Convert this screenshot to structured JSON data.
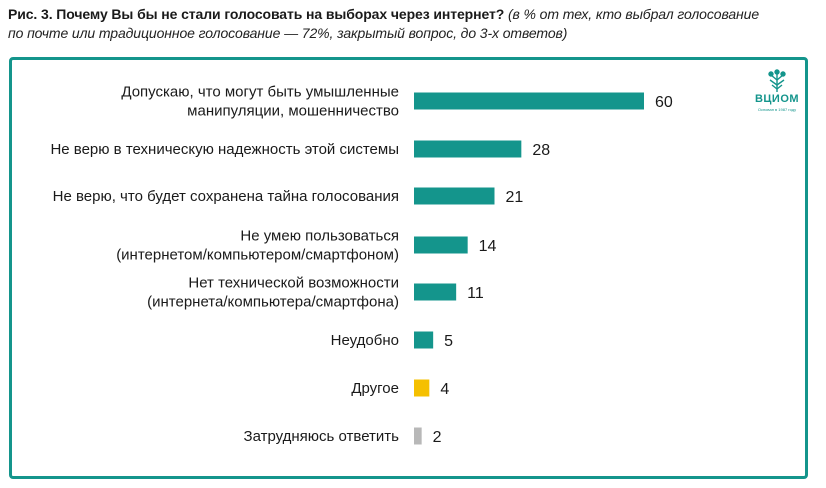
{
  "header": {
    "title_bold": "Рис. 3. Почему Вы бы не стали голосовать на выборах через интернет?",
    "title_note_1": "(в % от тех, кто выбрал голосование",
    "title_note_2": "по почте или традиционное голосование — 72%, закрытый вопрос, до 3-х ответов)"
  },
  "logo": {
    "name": "ВЦИОМ",
    "tagline": "Основан в 1987 году"
  },
  "colors": {
    "frame": "#14958c",
    "bar_main": "#14958c",
    "bar_other": "#f5c000",
    "bar_unsure": "#b8b8b8"
  },
  "chart_data": {
    "type": "bar",
    "orientation": "horizontal",
    "categories": [
      [
        "Допускаю, что могут быть умышленные",
        "манипуляции, мошенничество"
      ],
      [
        "Не верю в техническую надежность этой системы"
      ],
      [
        "Не верю, что будет сохранена тайна голосования"
      ],
      [
        "Не умею пользоваться",
        "(интернетом/компьютером/смартфоном)"
      ],
      [
        "Нет технической возможности",
        "(интернета/компьютера/смартфона)"
      ],
      [
        "Неудобно"
      ],
      [
        "Другое"
      ],
      [
        "Затрудняюсь ответить"
      ]
    ],
    "values": [
      60,
      28,
      21,
      14,
      11,
      5,
      4,
      2
    ],
    "value_labels": [
      "60",
      "28",
      "21",
      "14",
      "11",
      "5",
      "4",
      "2"
    ],
    "bar_colors": [
      "#14958c",
      "#14958c",
      "#14958c",
      "#14958c",
      "#14958c",
      "#14958c",
      "#f5c000",
      "#b8b8b8"
    ],
    "xlim": [
      0,
      60
    ],
    "grid": false,
    "legend": "none"
  }
}
